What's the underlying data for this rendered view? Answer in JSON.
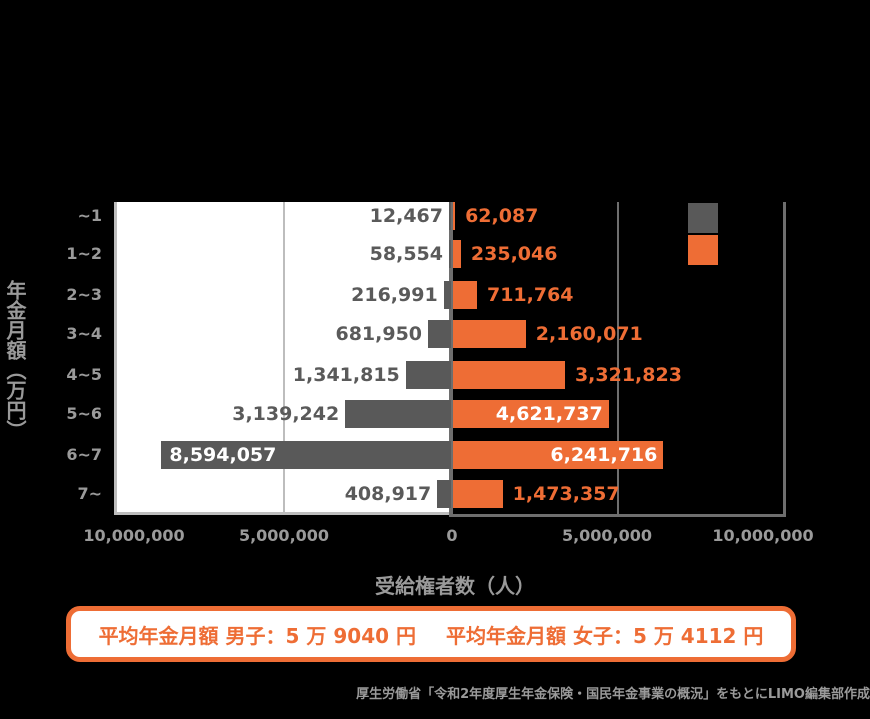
{
  "title": "",
  "chart_data": {
    "type": "bar",
    "orientation": "horizontal-butterfly",
    "title": "",
    "categories": [
      "~1",
      "1~2",
      "2~3",
      "3~4",
      "4~5",
      "5~6",
      "6~7",
      "7~"
    ],
    "series": [
      {
        "name": "male",
        "color": "#595959",
        "side": "left",
        "values": [
          12467,
          58554,
          216991,
          681950,
          1341815,
          3139242,
          8594057,
          408917
        ],
        "labels": [
          "12,467",
          "58,554",
          "216,991",
          "681,950",
          "1,341,815",
          "3,139,242",
          "8,594,057",
          "408,917"
        ]
      },
      {
        "name": "female",
        "color": "#ee6d35",
        "side": "right",
        "values": [
          62087,
          235046,
          711764,
          2160071,
          3321823,
          4621737,
          6241716,
          1473357
        ],
        "labels": [
          "62,087",
          "235,046",
          "711,764",
          "2,160,071",
          "3,321,823",
          "4,621,737",
          "6,241,716",
          "1,473,357"
        ]
      }
    ],
    "xlabel": "受給権者数（人）",
    "ylabel": "年金月額（万円）",
    "xlim": [
      -10000000,
      10000000
    ],
    "xticks": [
      "10,000,000",
      "5,000,000",
      "0",
      "5,000,000",
      "10,000,000"
    ],
    "grid": true,
    "legend_position": "top-right"
  },
  "legend": {
    "items": [
      {
        "label": "",
        "color": "#595959"
      },
      {
        "label": "",
        "color": "#ee6d35"
      }
    ]
  },
  "summary": {
    "male": "平均年金月額 男子：5 万 9040 円",
    "female": "平均年金月額 女子：5 万 4112 円"
  },
  "source": "厚生労働省「令和2年度厚生年金保険・国民年金事業の概況」をもとにLIMO編集部作成"
}
